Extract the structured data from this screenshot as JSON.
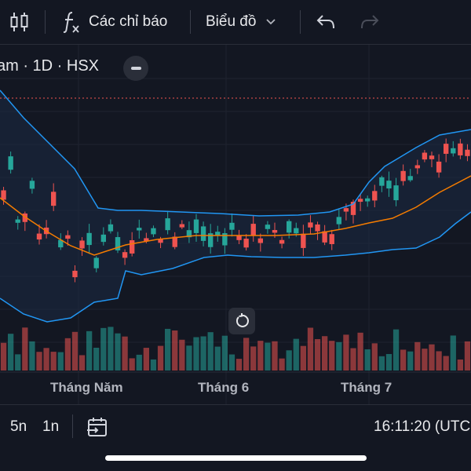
{
  "toolbar": {
    "indicators_label": "Các chỉ báo",
    "chart_type_label": "Biểu đồ",
    "icons": [
      "candles-icon",
      "function-icon",
      "chevron-down-icon",
      "undo-icon",
      "redo-icon"
    ]
  },
  "chart": {
    "symbol_text": "am · 1D · HSX",
    "x_labels": [
      "Tháng Năm",
      "Tháng 6",
      "Tháng 7"
    ],
    "colors": {
      "background": "#131722",
      "up": "#26a69a",
      "down": "#ef5350",
      "bollinger_band": "#2196f3",
      "ma_line": "#f57c00",
      "price_line": "#ef5350",
      "band_fill": "#1b2a44"
    }
  },
  "bottom_bar": {
    "range_5y": "5n",
    "range_1y": "1n",
    "time_text": "16:11:20 (UTC"
  },
  "chart_data": {
    "type": "candlestick",
    "indicators": [
      "Bollinger Bands",
      "Volume"
    ],
    "x_labels": [
      "Tháng Năm",
      "Tháng 6",
      "Tháng 7"
    ]
  }
}
